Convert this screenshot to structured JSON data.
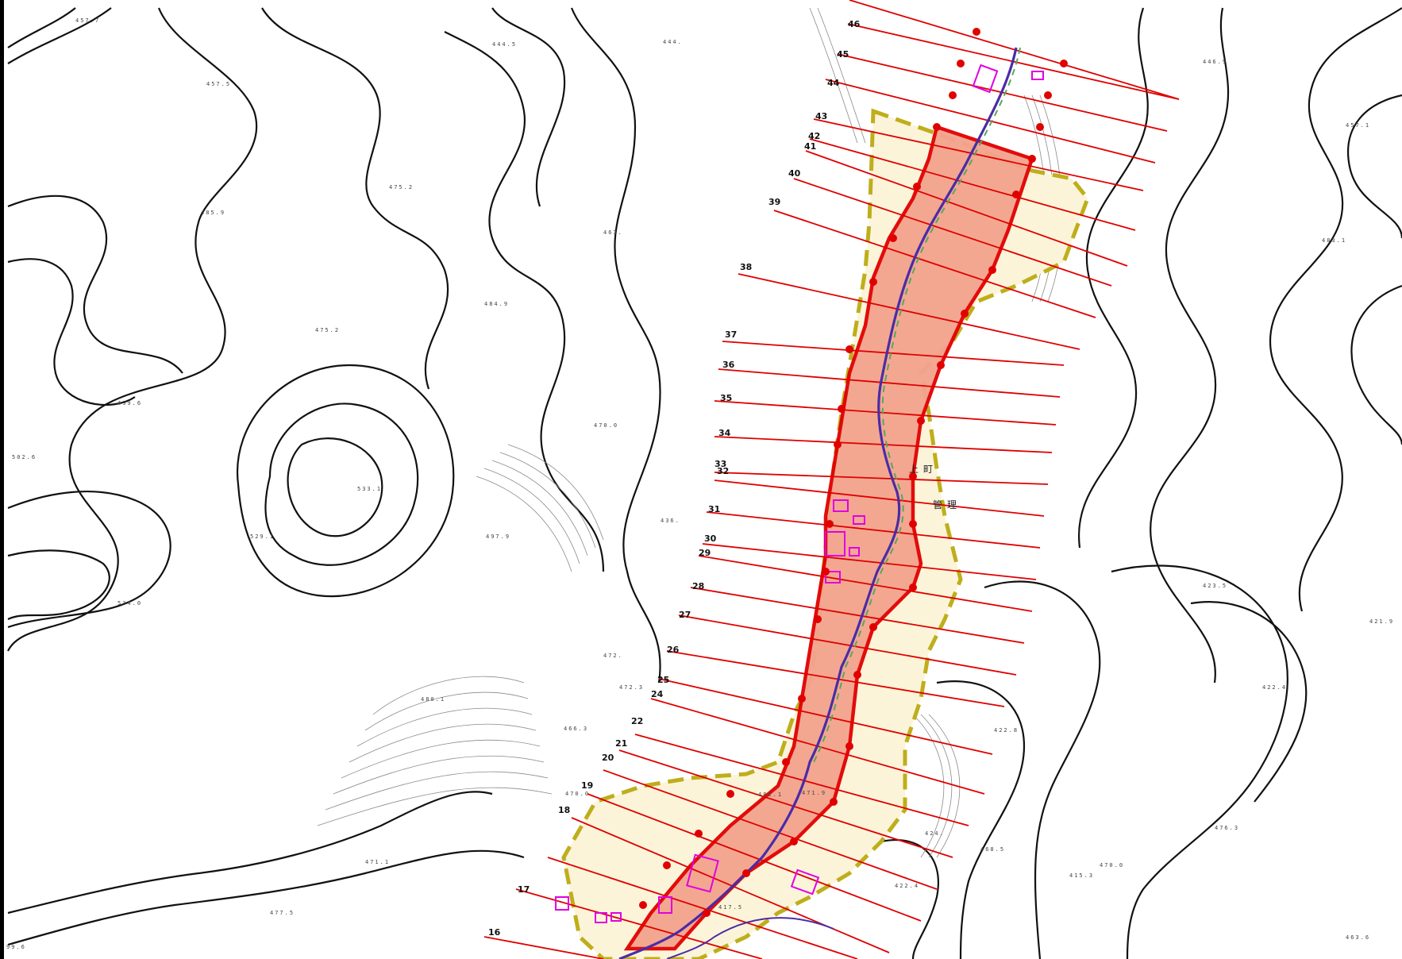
{
  "map": {
    "spot_heights": [
      "457.7",
      "444.5",
      "444.",
      "446.9",
      "457.5",
      "457.1",
      "475.2",
      "485.9",
      "463.",
      "483.1",
      "484.9",
      "475.2",
      "499.6",
      "470.0",
      "502.6",
      "533.1",
      "529.1",
      "497.9",
      "436.",
      "423.5",
      "534.0",
      "421.9",
      "472.3",
      "480.1",
      "422.4",
      "472.",
      "422.8",
      "471.1",
      "476.3",
      "477.5",
      "424.",
      "422.4",
      "470.0",
      "482.1",
      "470.0",
      "463.6",
      "468.5",
      "471.9",
      "99.6",
      "415.3",
      "417.5",
      "466.3"
    ],
    "section_numbers": [
      "16",
      "17",
      "18",
      "19",
      "20",
      "21",
      "22",
      "24",
      "25",
      "26",
      "27",
      "28",
      "29",
      "30",
      "31",
      "32",
      "33",
      "34",
      "35",
      "36",
      "37",
      "38",
      "39",
      "40",
      "41",
      "42",
      "43",
      "44",
      "45",
      "46"
    ],
    "village_label": [
      "上",
      "町",
      "管",
      "理"
    ],
    "colors": {
      "contour": "#111111",
      "contour_fine": "#8a8a8a",
      "section_line": "#e00000",
      "core_fill": "#f3a38e",
      "core_edge": "#e10000",
      "buffer_fill": "#fbf4d9",
      "buffer_edge": "#bfae1c",
      "stream": "#4b2ca6",
      "road": "#57a85a",
      "building": "#e000e0"
    }
  }
}
